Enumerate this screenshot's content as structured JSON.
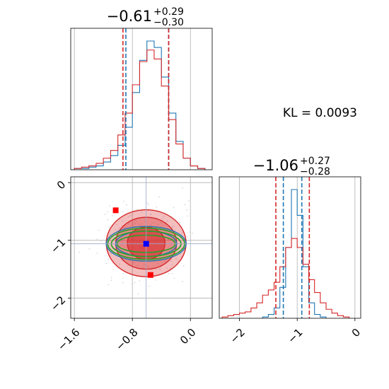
{
  "chart_data": [
    {
      "type": "histogram",
      "parameter_index": 0,
      "title_value": "−0.61",
      "title_upper": "+0.29",
      "title_lower": "−0.30",
      "xlim": [
        -1.65,
        0.3
      ],
      "grid": true,
      "series": [
        {
          "name": "",
          "color": "#1f77b4",
          "bins": [
            -1.6,
            -1.5,
            -1.4,
            -1.3,
            -1.2,
            -1.1,
            -1.0,
            -0.9,
            -0.8,
            -0.7,
            -0.6,
            -0.5,
            -0.4,
            -0.3,
            -0.2,
            -0.1,
            0.0,
            0.1,
            0.2
          ],
          "counts": [
            1,
            1,
            2,
            3,
            6,
            11,
            19,
            33,
            60,
            85,
            100,
            95,
            72,
            44,
            22,
            9,
            3,
            1
          ]
        },
        {
          "name": "",
          "color": "#d62728",
          "bins": [
            -1.6,
            -1.5,
            -1.4,
            -1.3,
            -1.2,
            -1.1,
            -1.0,
            -0.9,
            -0.8,
            -0.7,
            -0.6,
            -0.5,
            -0.4,
            -0.3,
            -0.2,
            -0.1,
            0.0,
            0.1,
            0.2
          ],
          "counts": [
            1,
            2,
            3,
            5,
            9,
            15,
            27,
            44,
            66,
            84,
            93,
            86,
            65,
            39,
            20,
            9,
            3,
            1
          ]
        }
      ],
      "quantile_lines": [
        {
          "color": "#1f77b4",
          "values": [
            -0.89,
            -0.3
          ]
        },
        {
          "color": "#d62728",
          "values": [
            -0.93,
            -0.3
          ]
        }
      ]
    },
    {
      "type": "contour",
      "parameter_index": [
        0,
        1
      ],
      "xlim": [
        -1.65,
        0.3
      ],
      "ylim": [
        -2.35,
        0.1
      ],
      "xticks": [
        "−1.6",
        "−0.8",
        "0.0"
      ],
      "yticks": [
        "0",
        "−1",
        "−2"
      ],
      "xtick_values": [
        -1.6,
        -0.8,
        0.0
      ],
      "ytick_values": [
        0,
        -1,
        -2
      ],
      "grid": true,
      "contours": [
        {
          "color": "#d62728",
          "center": [
            -0.61,
            -1.05
          ],
          "radii": [
            [
              0.55,
              0.58
            ],
            [
              0.42,
              0.45
            ],
            [
              0.26,
              0.28
            ]
          ]
        },
        {
          "color": "#1f77b4",
          "center": [
            -0.61,
            -1.06
          ],
          "radii": [
            [
              0.55,
              0.3
            ],
            [
              0.42,
              0.22
            ]
          ]
        },
        {
          "color": "#2ca02c",
          "center": [
            -0.61,
            -1.06
          ],
          "radii": [
            [
              0.53,
              0.27
            ],
            [
              0.48,
              0.22
            ],
            [
              0.4,
              0.15
            ]
          ]
        }
      ],
      "markers": [
        {
          "color": "#ff0000",
          "x": -1.03,
          "y": -0.48
        },
        {
          "color": "#ff0000",
          "x": -0.55,
          "y": -1.6
        },
        {
          "color": "#0000ff",
          "x": -0.61,
          "y": -1.06
        }
      ],
      "crosshair": {
        "x": -0.61,
        "y": -1.06
      }
    },
    {
      "type": "histogram",
      "parameter_index": 1,
      "title_value": "−1.06",
      "title_upper": "+0.27",
      "title_lower": "−0.28",
      "xlim": [
        -2.35,
        0.1
      ],
      "xticks": [
        "−2",
        "−1",
        "0"
      ],
      "xtick_values": [
        -2,
        -1,
        0
      ],
      "grid": true,
      "series": [
        {
          "name": "",
          "color": "#1f77b4",
          "bins": [
            -1.6,
            -1.5,
            -1.4,
            -1.3,
            -1.2,
            -1.1,
            -1.0,
            -0.9,
            -0.8,
            -0.7,
            -0.6,
            -0.5
          ],
          "counts": [
            1,
            3,
            8,
            24,
            55,
            100,
            80,
            40,
            12,
            3,
            1
          ]
        },
        {
          "name": "",
          "color": "#d62728",
          "bins": [
            -2.3,
            -2.2,
            -2.1,
            -2.0,
            -1.9,
            -1.8,
            -1.7,
            -1.6,
            -1.5,
            -1.4,
            -1.3,
            -1.2,
            -1.1,
            -1.0,
            -0.9,
            -0.8,
            -0.7,
            -0.6,
            -0.5,
            -0.4,
            -0.3,
            -0.2,
            -0.1
          ],
          "counts": [
            1,
            2,
            3,
            4,
            5,
            8,
            12,
            18,
            22,
            28,
            40,
            55,
            62,
            55,
            42,
            30,
            20,
            12,
            7,
            4,
            2,
            1
          ]
        }
      ],
      "quantile_lines": [
        {
          "color": "#1f77b4",
          "values": [
            -1.24,
            -0.92
          ]
        },
        {
          "color": "#d62728",
          "values": [
            -1.37,
            -0.79
          ]
        }
      ]
    }
  ],
  "annotation": {
    "kl_label": "KL = 0.0093"
  }
}
